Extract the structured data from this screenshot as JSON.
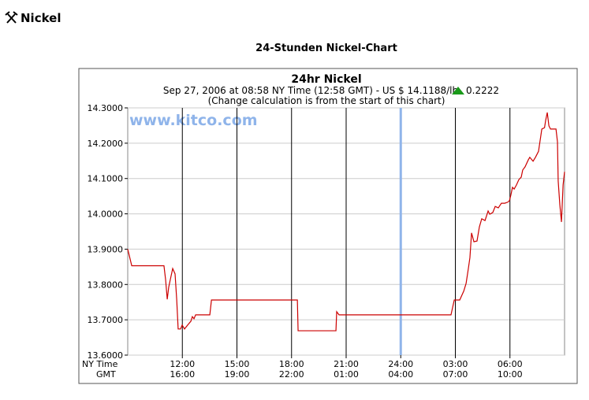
{
  "page_title": "Nickel",
  "section_title": "24-Stunden Nickel-Chart",
  "chart_data": {
    "type": "line",
    "title": "24hr Nickel",
    "subtitle": "Sep 27, 2006 at 08:58 NY Time (12:58 GMT)  -  US $ 14.1188/lb",
    "change": "0.2222",
    "note": "(Change calculation is from the start of this chart)",
    "watermark": "www.kitco.com",
    "x_axis_rows": [
      "NY Time",
      "GMT"
    ],
    "xlim": [
      9,
      33
    ],
    "xticks": [
      {
        "value": 12,
        "label": "12:00"
      },
      {
        "value": 15,
        "label": "15:00"
      },
      {
        "value": 18,
        "label": "18:00"
      },
      {
        "value": 21,
        "label": "21:00"
      },
      {
        "value": 24,
        "label": "24:00"
      },
      {
        "value": 27,
        "label": "03:00"
      },
      {
        "value": 30,
        "label": "06:00"
      }
    ],
    "gmt_tick_labels": [
      "16:00",
      "19:00",
      "22:00",
      "01:00",
      "04:00",
      "07:00",
      "10:00"
    ],
    "ylim": [
      13.6,
      14.3
    ],
    "yticks": [
      {
        "value": 13.6,
        "label": "13.6000"
      },
      {
        "value": 13.7,
        "label": "13.7000"
      },
      {
        "value": 13.8,
        "label": "13.8000"
      },
      {
        "value": 13.9,
        "label": "13.9000"
      },
      {
        "value": 14.0,
        "label": "14.0000"
      },
      {
        "value": 14.1,
        "label": "14.1000"
      },
      {
        "value": 14.2,
        "label": "14.2000"
      },
      {
        "value": 14.3,
        "label": "14.3000"
      }
    ],
    "marker_x": 24,
    "marker_color": "#8fb4ea",
    "x": [
      9.0,
      9.22,
      10.99,
      11.08,
      11.17,
      11.25,
      11.34,
      11.47,
      11.6,
      11.69,
      11.77,
      11.9,
      11.99,
      12.12,
      12.29,
      12.47,
      12.55,
      12.64,
      12.73,
      13.51,
      13.6,
      18.32,
      18.36,
      20.44,
      20.48,
      20.61,
      26.76,
      26.94,
      27.24,
      27.46,
      27.59,
      27.72,
      27.8,
      27.89,
      28.02,
      28.19,
      28.32,
      28.45,
      28.63,
      28.8,
      28.89,
      29.06,
      29.19,
      29.36,
      29.53,
      29.71,
      29.88,
      29.97,
      30.05,
      30.14,
      30.23,
      30.36,
      30.49,
      30.62,
      30.7,
      30.83,
      31.01,
      31.09,
      31.27,
      31.4,
      31.57,
      31.75,
      31.9,
      31.96,
      32.05,
      32.14,
      32.23,
      32.53,
      32.61,
      32.65,
      32.74,
      32.83,
      32.92,
      33.0
    ],
    "series": [
      {
        "name": "Nickel",
        "color": "#cc0000",
        "values": [
          13.9,
          13.853,
          13.853,
          13.814,
          13.758,
          13.792,
          13.814,
          13.845,
          13.83,
          13.758,
          13.674,
          13.674,
          13.685,
          13.674,
          13.685,
          13.696,
          13.709,
          13.703,
          13.714,
          13.714,
          13.756,
          13.756,
          13.669,
          13.669,
          13.723,
          13.714,
          13.714,
          13.756,
          13.756,
          13.781,
          13.803,
          13.847,
          13.876,
          13.946,
          13.921,
          13.923,
          13.963,
          13.986,
          13.981,
          14.008,
          13.999,
          14.004,
          14.021,
          14.017,
          14.03,
          14.03,
          14.033,
          14.037,
          14.053,
          14.075,
          14.07,
          14.082,
          14.097,
          14.104,
          14.124,
          14.133,
          14.153,
          14.16,
          14.149,
          14.16,
          14.177,
          14.24,
          14.244,
          14.264,
          14.287,
          14.249,
          14.24,
          14.24,
          14.204,
          14.093,
          14.026,
          13.977,
          14.082,
          14.119
        ]
      }
    ]
  }
}
